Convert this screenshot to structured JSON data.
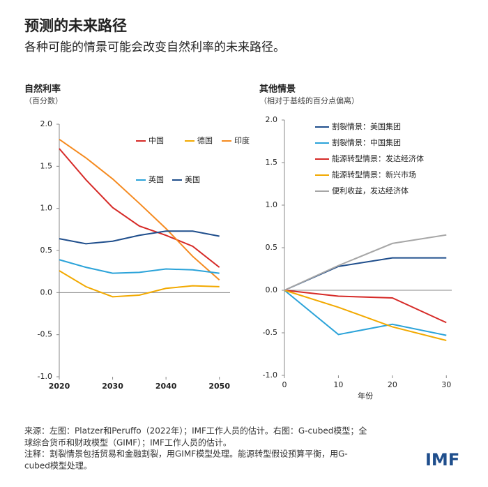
{
  "header": {
    "title": "预测的未来路径",
    "subtitle": "各种可能的情景可能会改变自然利率的未来路径。"
  },
  "chart_data": [
    {
      "type": "line",
      "title": "自然利率",
      "subtitle": "（百分数）",
      "x": [
        2020,
        2025,
        2030,
        2035,
        2040,
        2045,
        2050
      ],
      "xlim": [
        2020,
        2052
      ],
      "xticks": [
        2020,
        2030,
        2040,
        2050
      ],
      "ylim": [
        -1,
        2
      ],
      "yticks": [
        {
          "value": -1,
          "label": "-1.0"
        },
        -0.5,
        {
          "value": 0,
          "label": "0.0"
        },
        0.5,
        {
          "value": 1,
          "label": "1.0"
        },
        1.5,
        {
          "value": 2,
          "label": "2.0"
        }
      ],
      "series": [
        {
          "name": "中国",
          "color": "#d62a27",
          "values": [
            1.71,
            1.34,
            1.01,
            0.79,
            0.68,
            0.55,
            0.3
          ]
        },
        {
          "name": "德国",
          "color": "#f2a900",
          "values": [
            0.26,
            0.07,
            -0.05,
            -0.03,
            0.05,
            0.08,
            0.07
          ]
        },
        {
          "name": "印度",
          "color": "#f58a1f",
          "values": [
            1.82,
            1.6,
            1.35,
            1.06,
            0.76,
            0.43,
            0.15
          ]
        },
        {
          "name": "英国",
          "color": "#2ba3d9",
          "values": [
            0.39,
            0.3,
            0.23,
            0.24,
            0.28,
            0.27,
            0.23
          ]
        },
        {
          "name": "美国",
          "color": "#1f4e8c",
          "values": [
            0.64,
            0.58,
            0.61,
            0.68,
            0.73,
            0.73,
            0.67
          ]
        }
      ]
    },
    {
      "type": "line",
      "title": "其他情景",
      "subtitle": "（相对于基线的百分点偏离）",
      "xlabel": "年份",
      "x": [
        0,
        10,
        20,
        30
      ],
      "xlim": [
        0,
        31
      ],
      "xticks": [
        0,
        10,
        20,
        30
      ],
      "ylim": [
        -1,
        2
      ],
      "yticks": [
        {
          "value": -1,
          "label": "-1.0"
        },
        -0.5,
        {
          "value": 0,
          "label": "0.0"
        },
        0.5,
        {
          "value": 1,
          "label": "1.0"
        },
        1.5,
        {
          "value": 2,
          "label": "2.0"
        }
      ],
      "series": [
        {
          "name": "割裂情景：美国集团",
          "color": "#1f4e8c",
          "values": [
            0,
            0.28,
            0.38,
            0.38
          ]
        },
        {
          "name": "割裂情景：中国集团",
          "color": "#2ba3d9",
          "values": [
            0,
            -0.52,
            -0.4,
            -0.53
          ]
        },
        {
          "name": "能源转型情景：发达经济体",
          "color": "#d62a27",
          "values": [
            0,
            -0.07,
            -0.09,
            -0.38
          ]
        },
        {
          "name": "能源转型情景：新兴市场",
          "color": "#f2a900",
          "values": [
            0,
            -0.2,
            -0.43,
            -0.59
          ]
        },
        {
          "name": "便利收益，发达经济体",
          "color": "#a6a6a6",
          "values": [
            0,
            0.29,
            0.55,
            0.65
          ]
        }
      ]
    }
  ],
  "footer": {
    "lines": [
      "来源：左图：Platzer和Peruffo（2022年）；IMF工作人员的估计。右图：G-cubed模型；全",
      "球综合货币和财政模型（GIMF）；IMF工作人员的估计。",
      "注释：割裂情景包括贸易和金融割裂，用GIMF模型处理。能源转型假设预算平衡，用G-",
      "cubed模型处理。"
    ],
    "logo": "IMF"
  }
}
